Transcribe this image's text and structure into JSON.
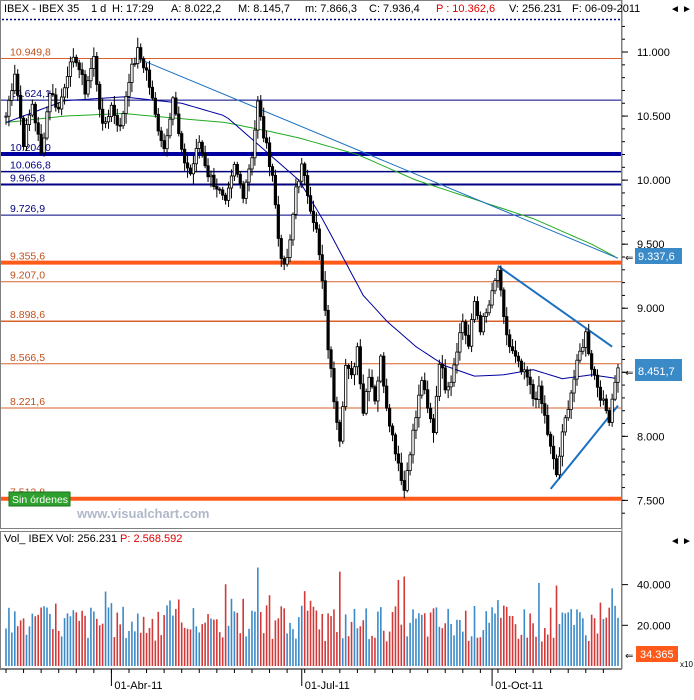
{
  "header": {
    "symbol": "IBEX - IBEX 35",
    "period": "1 d",
    "h": "H: 17:29",
    "a": "A: 8.022,2",
    "m": "M: 8.145,7",
    "mn": "m: 7.866,3",
    "c": "C: 7.936,4",
    "p": "P : 10.362,6",
    "vol": "V: 256.231",
    "f": "F: 06-09-2011"
  },
  "status_badge": "Sin órdenes",
  "watermark": "www.visualchart.com",
  "price_panel": {
    "levels": [
      {
        "value": 10949.8,
        "label": "10.949,8",
        "color": "#d9622b",
        "width": 1
      },
      {
        "value": 10624.1,
        "label": "10.624,1",
        "color": "#000080",
        "width": 1
      },
      {
        "value": 10204.0,
        "label": "10.204,0",
        "color": "#0000a0",
        "width": 4
      },
      {
        "value": 10066.8,
        "label": "10.066,8",
        "color": "#000080",
        "width": 1.5
      },
      {
        "value": 9965.8,
        "label": "9.965,8",
        "color": "#000080",
        "width": 2
      },
      {
        "value": 9726.9,
        "label": "9.726,9",
        "color": "#000080",
        "width": 1
      },
      {
        "value": 9355.6,
        "label": "9.355,6",
        "color": "#ff5a1a",
        "width": 4
      },
      {
        "value": 9207.0,
        "label": "9.207,0",
        "color": "#d9622b",
        "width": 1
      },
      {
        "value": 8898.6,
        "label": "8.898,6",
        "color": "#d9622b",
        "width": 1.5
      },
      {
        "value": 8566.5,
        "label": "8.566,5",
        "color": "#d9622b",
        "width": 1
      },
      {
        "value": 8221.6,
        "label": "8.221,6",
        "color": "#d9622b",
        "width": 1
      },
      {
        "value": 7512.8,
        "label": "7.512,8",
        "color": "#ff5a1a",
        "width": 4
      }
    ],
    "y_ticks": [
      "11.000",
      "10.500",
      "10.000",
      "9.500",
      "9.000",
      "8.500",
      "8.000",
      "7.500"
    ],
    "y_tick_values": [
      11000,
      10500,
      10000,
      9500,
      9000,
      8500,
      8000,
      7500
    ],
    "y_range": [
      7300,
      11250
    ],
    "tag_upper": "9.337,6",
    "tag_upper_value": 9337.6,
    "tag_lower": "8.451,7",
    "tag_lower_value": 8451.7
  },
  "volume_panel": {
    "title": "Vol_ IBEX",
    "vol_label": "Vol: 256.231",
    "p_label": "P: 2.568.592",
    "y_ticks": [
      "40.000",
      "20.000"
    ],
    "y_tick_values": [
      40000,
      20000
    ],
    "y_range": [
      0,
      58000
    ],
    "tag": "34.365",
    "tag_value": 34365,
    "multiplier": "x10"
  },
  "x_axis": {
    "labels": [
      "01-Abr-11",
      "01-Jul-11",
      "01-Oct-11"
    ],
    "label_index": [
      36,
      101,
      166
    ]
  },
  "colors": {
    "price": "#000000",
    "ma_fast": "#0000a0",
    "ma_slow": "#22aa22",
    "trend": "#1a6fc0",
    "volume_up": "#3a8ac8",
    "volume_down": "#d23a3a",
    "tag_bg": "#3a8ac8",
    "tag_vol_bg": "#ff5a1a",
    "badge_bg": "#2ea02e"
  },
  "chart_data": {
    "type": "line",
    "series": [],
    "anchors": [
      [
        0,
        10500
      ],
      [
        3,
        10850
      ],
      [
        6,
        10300
      ],
      [
        9,
        10600
      ],
      [
        12,
        10200
      ],
      [
        15,
        10700
      ],
      [
        18,
        10550
      ],
      [
        21,
        10850
      ],
      [
        24,
        10950
      ],
      [
        27,
        10700
      ],
      [
        30,
        10950
      ],
      [
        33,
        10400
      ],
      [
        36,
        10580
      ],
      [
        39,
        10400
      ],
      [
        42,
        10800
      ],
      [
        45,
        11000
      ],
      [
        48,
        10850
      ],
      [
        51,
        10500
      ],
      [
        54,
        10250
      ],
      [
        57,
        10650
      ],
      [
        60,
        10200
      ],
      [
        63,
        10050
      ],
      [
        66,
        10300
      ],
      [
        69,
        10050
      ],
      [
        72,
        9950
      ],
      [
        75,
        9800
      ],
      [
        78,
        10100
      ],
      [
        81,
        9900
      ],
      [
        84,
        10200
      ],
      [
        86,
        10600
      ],
      [
        88,
        10350
      ],
      [
        91,
        10050
      ],
      [
        93,
        9550
      ],
      [
        95,
        9300
      ],
      [
        97,
        9500
      ],
      [
        99,
        9950
      ],
      [
        101,
        10100
      ],
      [
        104,
        9800
      ],
      [
        106,
        9600
      ],
      [
        108,
        9200
      ],
      [
        110,
        8700
      ],
      [
        112,
        8300
      ],
      [
        114,
        8000
      ],
      [
        116,
        8550
      ],
      [
        118,
        8450
      ],
      [
        120,
        8700
      ],
      [
        122,
        8200
      ],
      [
        124,
        8500
      ],
      [
        126,
        8300
      ],
      [
        128,
        8600
      ],
      [
        130,
        8250
      ],
      [
        132,
        8000
      ],
      [
        134,
        7800
      ],
      [
        136,
        7580
      ],
      [
        138,
        7900
      ],
      [
        140,
        8150
      ],
      [
        142,
        8450
      ],
      [
        144,
        8200
      ],
      [
        146,
        8050
      ],
      [
        148,
        8600
      ],
      [
        150,
        8400
      ],
      [
        152,
        8450
      ],
      [
        154,
        8700
      ],
      [
        156,
        8900
      ],
      [
        158,
        8700
      ],
      [
        160,
        9050
      ],
      [
        162,
        8850
      ],
      [
        164,
        8950
      ],
      [
        166,
        9100
      ],
      [
        168,
        9300
      ],
      [
        170,
        8900
      ],
      [
        172,
        8700
      ],
      [
        174,
        8600
      ],
      [
        176,
        8500
      ],
      [
        178,
        8450
      ],
      [
        180,
        8300
      ],
      [
        182,
        8350
      ],
      [
        184,
        8150
      ],
      [
        186,
        7900
      ],
      [
        188,
        7700
      ],
      [
        190,
        8000
      ],
      [
        192,
        8250
      ],
      [
        194,
        8450
      ],
      [
        196,
        8650
      ],
      [
        198,
        8800
      ],
      [
        200,
        8550
      ],
      [
        202,
        8400
      ],
      [
        204,
        8250
      ],
      [
        206,
        8150
      ],
      [
        208,
        8450
      ],
      [
        209,
        8520
      ]
    ],
    "ma_fast_anchors": [
      [
        0,
        10450
      ],
      [
        20,
        10620
      ],
      [
        40,
        10650
      ],
      [
        60,
        10600
      ],
      [
        75,
        10500
      ],
      [
        90,
        10200
      ],
      [
        100,
        10000
      ],
      [
        108,
        9700
      ],
      [
        115,
        9400
      ],
      [
        122,
        9100
      ],
      [
        130,
        8900
      ],
      [
        140,
        8700
      ],
      [
        150,
        8550
      ],
      [
        160,
        8470
      ],
      [
        170,
        8480
      ],
      [
        180,
        8520
      ],
      [
        190,
        8450
      ],
      [
        200,
        8480
      ],
      [
        209,
        8450
      ]
    ],
    "ma_slow_anchors": [
      [
        0,
        10450
      ],
      [
        20,
        10500
      ],
      [
        40,
        10520
      ],
      [
        60,
        10480
      ],
      [
        75,
        10450
      ],
      [
        90,
        10380
      ],
      [
        100,
        10330
      ],
      [
        120,
        10200
      ],
      [
        140,
        10000
      ],
      [
        160,
        9850
      ],
      [
        180,
        9700
      ],
      [
        200,
        9500
      ],
      [
        209,
        9390
      ]
    ],
    "trendlines": [
      [
        45,
        10950,
        209,
        9390
      ],
      [
        168,
        9330,
        207,
        8700
      ],
      [
        186,
        7590,
        209,
        8240
      ]
    ],
    "volumes": [],
    "xlabel": "",
    "ylabel": ""
  }
}
